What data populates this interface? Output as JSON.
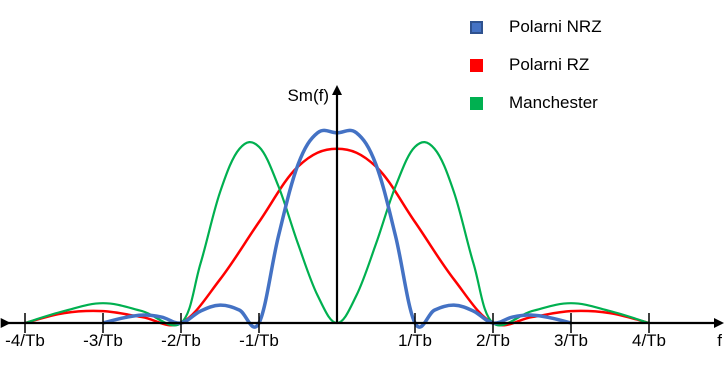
{
  "chart_data": {
    "type": "line",
    "title": "",
    "xlabel": "f",
    "ylabel": "Sm(f)",
    "xlim": [
      -4.35,
      5.0
    ],
    "ylim": [
      0,
      1.0
    ],
    "x_ticks": [
      {
        "value": -4,
        "label": "-4/Tb"
      },
      {
        "value": -3,
        "label": "-3/Tb"
      },
      {
        "value": -2,
        "label": "-2/Tb"
      },
      {
        "value": -1,
        "label": "-1/Tb"
      },
      {
        "value": 1,
        "label": "1/Tb"
      },
      {
        "value": 2,
        "label": "2/Tb"
      },
      {
        "value": 3,
        "label": "3/Tb"
      },
      {
        "value": 4,
        "label": "4/Tb"
      }
    ],
    "legend_position": "top-right",
    "grid": false,
    "series": [
      {
        "name": "Polarni NRZ",
        "color": "#4472c4",
        "x": [
          -3.0,
          -2.75,
          -2.5,
          -2.25,
          -2.0,
          -1.75,
          -1.5,
          -1.25,
          -1.0,
          -0.75,
          -0.5,
          -0.25,
          0.0,
          0.25,
          0.5,
          0.75,
          1.0,
          1.25,
          1.5,
          1.75,
          2.0,
          2.25,
          2.5,
          2.75,
          3.0
        ],
        "y": [
          0.0,
          0.025,
          0.04,
          0.03,
          0.0,
          0.06,
          0.09,
          0.065,
          0.0,
          0.44,
          0.8,
          0.96,
          0.96,
          0.96,
          0.8,
          0.44,
          0.0,
          0.065,
          0.09,
          0.06,
          0.0,
          0.03,
          0.04,
          0.025,
          0.0
        ]
      },
      {
        "name": "Polarni RZ",
        "color": "#ff0000",
        "x": [
          -4.0,
          -3.5,
          -3.0,
          -2.5,
          -2.0,
          -1.5,
          -1.0,
          -0.5,
          0.0,
          0.5,
          1.0,
          1.5,
          2.0,
          2.5,
          3.0,
          3.5,
          4.0
        ],
        "y": [
          0.0,
          0.05,
          0.06,
          0.03,
          0.0,
          0.22,
          0.51,
          0.79,
          0.88,
          0.79,
          0.51,
          0.22,
          0.0,
          0.03,
          0.06,
          0.05,
          0.0
        ]
      },
      {
        "name": "Manchester",
        "color": "#00b050",
        "x": [
          -4.0,
          -3.5,
          -3.0,
          -2.5,
          -2.0,
          -1.75,
          -1.5,
          -1.25,
          -1.0,
          -0.75,
          -0.5,
          -0.25,
          0.0,
          0.25,
          0.5,
          0.75,
          1.0,
          1.25,
          1.5,
          1.75,
          2.0,
          2.5,
          3.0,
          3.5,
          4.0
        ],
        "y": [
          0.0,
          0.06,
          0.1,
          0.06,
          0.0,
          0.3,
          0.66,
          0.88,
          0.89,
          0.69,
          0.4,
          0.14,
          0.0,
          0.14,
          0.4,
          0.69,
          0.89,
          0.88,
          0.66,
          0.3,
          0.0,
          0.06,
          0.1,
          0.06,
          0.0
        ]
      }
    ]
  }
}
